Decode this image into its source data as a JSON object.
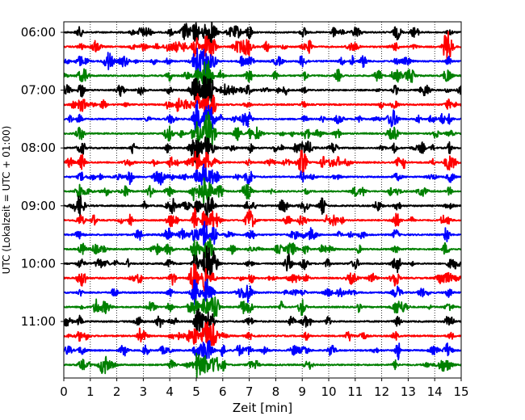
{
  "chart_data": {
    "type": "line",
    "title": "",
    "xlabel": "Zeit  [min]",
    "ylabel": "UTC (Lokalzeit = UTC + 01:00)",
    "xlim": [
      0,
      15
    ],
    "x_ticks": [
      "0",
      "1",
      "2",
      "3",
      "4",
      "5",
      "6",
      "7",
      "8",
      "9",
      "10",
      "11",
      "12",
      "13",
      "14",
      "15"
    ],
    "y_ticks": [
      {
        "label": "06:00",
        "trace": 0
      },
      {
        "label": "07:00",
        "trace": 4
      },
      {
        "label": "08:00",
        "trace": 8
      },
      {
        "label": "09:00",
        "trace": 12
      },
      {
        "label": "10:00",
        "trace": 16
      },
      {
        "label": "11:00",
        "trace": 20
      }
    ],
    "trace_count": 24,
    "trace_interval_min": 15,
    "trace_colors": [
      "#000000",
      "#ff0000",
      "#0000ff",
      "#008000"
    ],
    "grid": {
      "x": true,
      "style": "dotted"
    },
    "events": [
      {
        "x": 0.65,
        "amp": 0.9
      },
      {
        "x": 4.0,
        "amp": 0.8
      },
      {
        "x": 5.0,
        "amp": 2.2
      },
      {
        "x": 5.35,
        "amp": 3.0
      },
      {
        "x": 5.6,
        "amp": 1.6
      },
      {
        "x": 7.0,
        "amp": 0.9
      },
      {
        "x": 9.1,
        "amp": 0.8
      },
      {
        "x": 12.55,
        "amp": 0.9
      },
      {
        "x": 14.55,
        "amp": 0.8
      }
    ]
  }
}
